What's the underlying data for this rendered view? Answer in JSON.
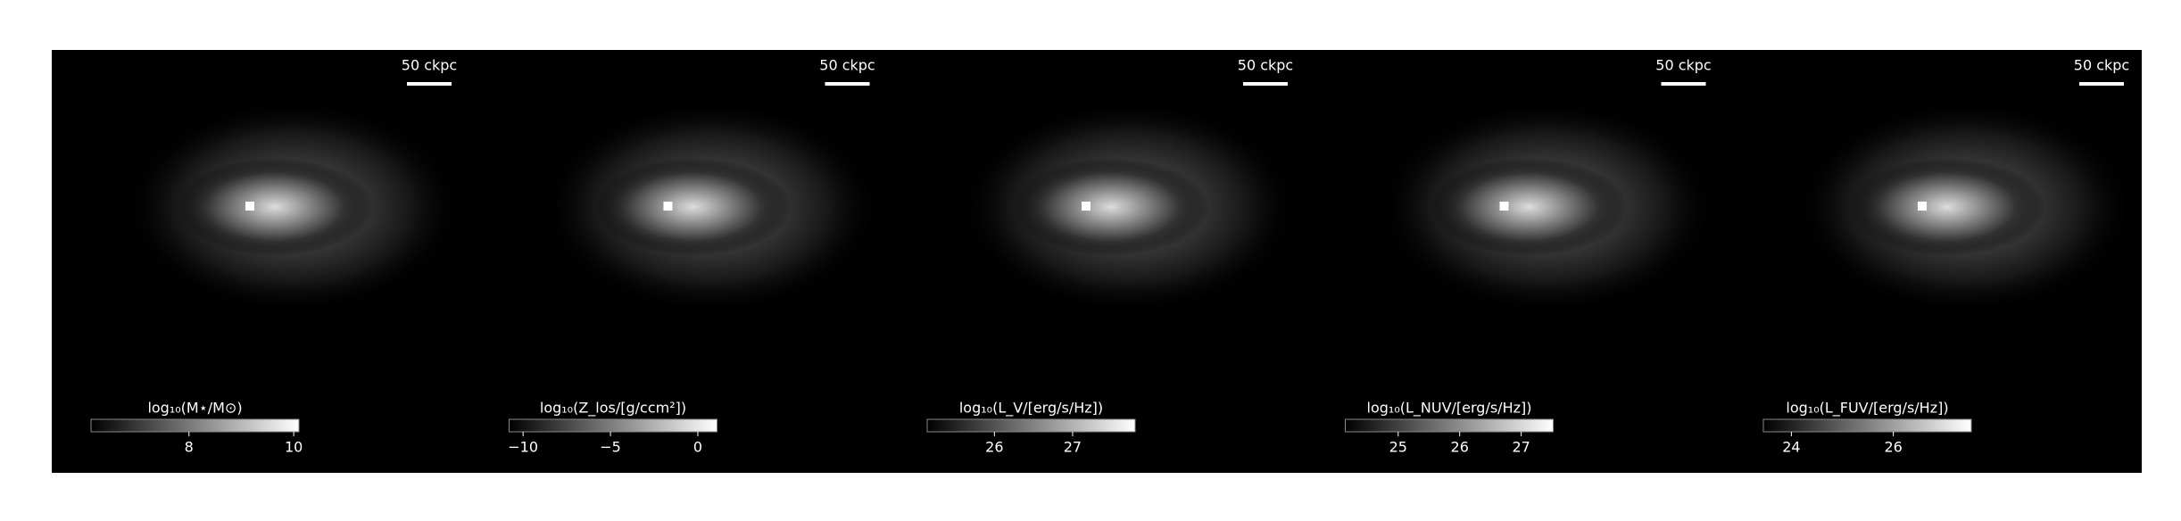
{
  "chart_data": [
    {
      "type": "image",
      "scale_bar_label": "50 ckpc",
      "colorbar_label": "log₁₀(M⋆/M⊙)",
      "colormap": "gray",
      "clim": [
        6.13,
        10.1
      ],
      "cticks": [
        8,
        10
      ]
    },
    {
      "type": "image",
      "scale_bar_label": "50 ckpc",
      "colorbar_label": "log₁₀(Z_los/[g/ccm²])",
      "colormap": "gray",
      "clim": [
        -10.8,
        1.1
      ],
      "cticks": [
        {
          "value": -10,
          "label": "−10"
        },
        {
          "value": -5,
          "label": "−5"
        },
        0
      ]
    },
    {
      "type": "image",
      "scale_bar_label": "50 ckpc",
      "colorbar_label": "log₁₀(L_V/[erg/s/Hz])",
      "colormap": "gray",
      "clim": [
        25.14,
        27.8
      ],
      "cticks": [
        26,
        27
      ]
    },
    {
      "type": "image",
      "scale_bar_label": "50 ckpc",
      "colorbar_label": "log₁₀(L_NUV/[erg/s/Hz])",
      "colormap": "gray",
      "clim": [
        24.14,
        27.52
      ],
      "cticks": [
        25,
        26,
        27
      ]
    },
    {
      "type": "image",
      "scale_bar_label": "50 ckpc",
      "colorbar_label": "log₁₀(L_FUV/[erg/s/Hz])",
      "colormap": "gray",
      "clim": [
        23.45,
        27.53
      ],
      "cticks": [
        24,
        26
      ]
    }
  ]
}
